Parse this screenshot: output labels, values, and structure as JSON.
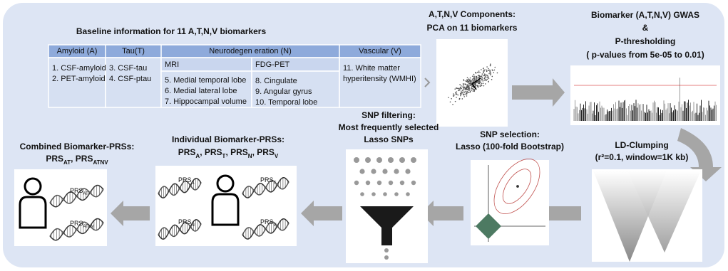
{
  "table": {
    "title": "Baseline information for 11 A,T,N,V biomarkers",
    "headers": [
      "Amyloid (A)",
      "Tau(T)",
      "Neurodegen eration (N)",
      "Vascular (V)"
    ],
    "subheaders": [
      "MRI",
      "FDG-PET"
    ],
    "amyloid": [
      "1. CSF-amyloid",
      "2. PET-amyloid"
    ],
    "tau": [
      "3. CSF-tau",
      "4. CSF-ptau"
    ],
    "mri": [
      "5. Medial temporal lobe",
      "6. Medial lateral lobe",
      "7. Hippocampal volume"
    ],
    "fdg": [
      "8. Cingulate",
      "9. Angular gyrus",
      "10. Temporal lobe"
    ],
    "vascular": [
      "11. White matter",
      "hyperitensity (WMHI)"
    ]
  },
  "pca": {
    "title": [
      "A,T,N,V Components:",
      "PCA on 11 biomarkers"
    ]
  },
  "gwas": {
    "title": [
      "Biomarker (A,T,N,V) GWAS",
      "&",
      "P-thresholding",
      "( p-values from 5e-05 to 0.01)"
    ]
  },
  "clumping": {
    "title": [
      "LD-Clumping",
      "(r²=0.1, window=1K kb)"
    ]
  },
  "selection": {
    "title": [
      "SNP selection:",
      "Lasso (100-fold Bootstrap)"
    ]
  },
  "filtering": {
    "title": [
      "SNP filtering:",
      "Most frequently selected",
      "Lasso SNPs"
    ]
  },
  "individual": {
    "title": "Individual Biomarker-PRSs:",
    "line": [
      {
        "text": "PRS",
        "sub": "A"
      },
      {
        "text": ", PRS",
        "sub": "T"
      },
      {
        "text": ", PRS",
        "sub": "N"
      },
      {
        "text": ", PRS",
        "sub": "V"
      }
    ],
    "icon_labels": [
      {
        "text": "PRS",
        "sub": "A"
      },
      {
        "text": "PRS",
        "sub": "T"
      },
      {
        "text": "PRS",
        "sub": "N"
      },
      {
        "text": "PRS",
        "sub": "V"
      }
    ]
  },
  "combined": {
    "title": "Combined Biomarker-PRSs:",
    "line": [
      {
        "text": "PRS",
        "sub": "AT"
      },
      {
        "text": ", PRS",
        "sub": "ATNV"
      }
    ],
    "icon_labels": [
      {
        "text": "PRS",
        "sub": "AT"
      },
      {
        "text": "PRS",
        "sub": "ATNV"
      }
    ]
  }
}
